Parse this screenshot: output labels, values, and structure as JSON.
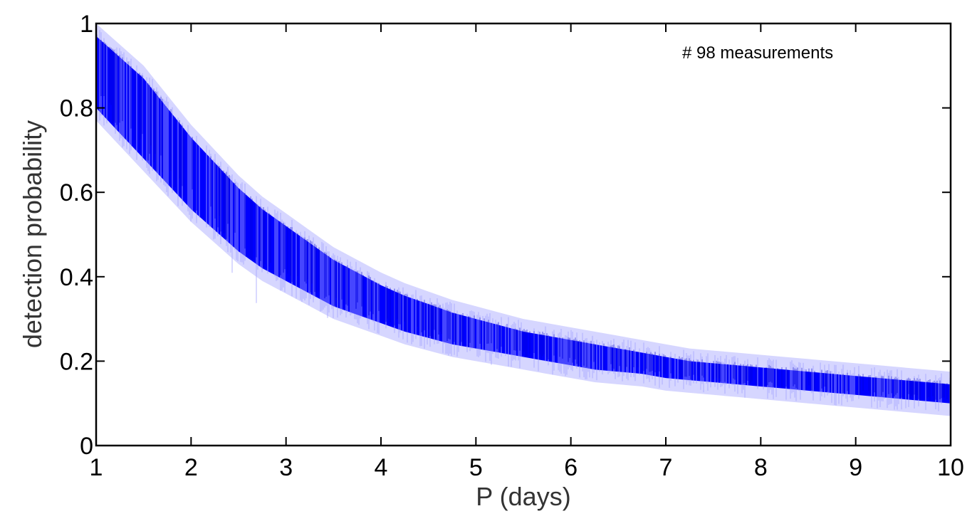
{
  "chart_data": {
    "type": "line",
    "title": "",
    "xlabel": "P (days)",
    "ylabel": "detection probability",
    "xlim": [
      1,
      10
    ],
    "ylim": [
      0,
      1
    ],
    "xticks": [
      "1",
      "2",
      "3",
      "4",
      "5",
      "6",
      "7",
      "8",
      "9",
      "10"
    ],
    "yticks": [
      "0",
      "0.2",
      "0.4",
      "0.6",
      "0.8",
      "1"
    ],
    "annotation": "# 98 measurements",
    "grid": false,
    "series": [
      {
        "color": "#0000ff",
        "band_color": "#b4b4ff",
        "x": [
          1.0,
          1.25,
          1.5,
          1.75,
          2.0,
          2.25,
          2.5,
          2.75,
          3.0,
          3.25,
          3.5,
          3.75,
          4.0,
          4.25,
          4.5,
          4.75,
          5.0,
          5.25,
          5.5,
          5.75,
          6.0,
          6.25,
          6.5,
          6.75,
          7.0,
          7.25,
          7.5,
          7.75,
          8.0,
          8.25,
          8.5,
          8.75,
          9.0,
          9.25,
          9.5,
          9.75,
          10.0
        ],
        "upper": [
          0.97,
          0.92,
          0.87,
          0.8,
          0.73,
          0.67,
          0.61,
          0.56,
          0.52,
          0.48,
          0.44,
          0.41,
          0.38,
          0.355,
          0.335,
          0.315,
          0.3,
          0.285,
          0.27,
          0.26,
          0.25,
          0.24,
          0.23,
          0.22,
          0.21,
          0.2,
          0.195,
          0.19,
          0.185,
          0.18,
          0.175,
          0.17,
          0.165,
          0.16,
          0.155,
          0.15,
          0.145
        ],
        "lower": [
          0.8,
          0.74,
          0.68,
          0.62,
          0.56,
          0.51,
          0.46,
          0.42,
          0.39,
          0.36,
          0.33,
          0.31,
          0.29,
          0.27,
          0.255,
          0.24,
          0.23,
          0.22,
          0.21,
          0.2,
          0.19,
          0.18,
          0.175,
          0.17,
          0.16,
          0.155,
          0.15,
          0.145,
          0.14,
          0.135,
          0.13,
          0.125,
          0.12,
          0.115,
          0.11,
          0.105,
          0.1
        ]
      }
    ]
  }
}
